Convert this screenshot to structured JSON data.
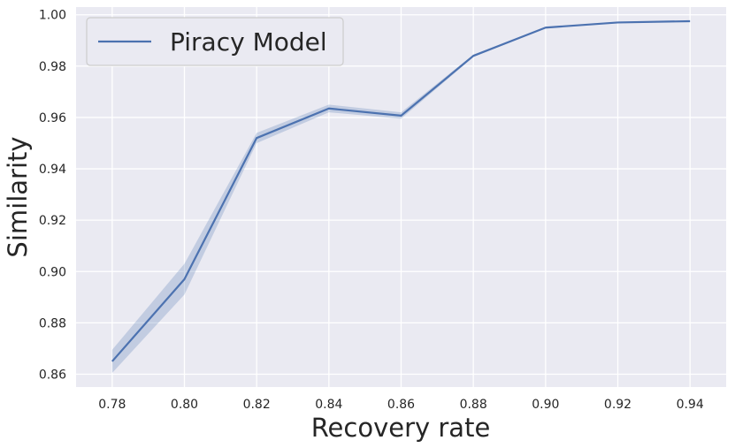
{
  "chart_data": {
    "type": "line",
    "title": "",
    "xlabel": "Recovery rate",
    "ylabel": "Similarity",
    "xlim": [
      0.77,
      0.95
    ],
    "ylim": [
      0.855,
      1.003
    ],
    "x_ticks": [
      0.78,
      0.8,
      0.82,
      0.84,
      0.86,
      0.88,
      0.9,
      0.92,
      0.94
    ],
    "x_tick_labels": [
      "0.78",
      "0.80",
      "0.82",
      "0.84",
      "0.86",
      "0.88",
      "0.90",
      "0.92",
      "0.94"
    ],
    "y_ticks": [
      0.86,
      0.88,
      0.9,
      0.92,
      0.94,
      0.96,
      0.98,
      1.0
    ],
    "y_tick_labels": [
      "0.86",
      "0.88",
      "0.90",
      "0.92",
      "0.94",
      "0.96",
      "0.98",
      "1.00"
    ],
    "grid": true,
    "legend_position": "top-left",
    "background_color": "#eaeaf2",
    "series": [
      {
        "name": "Piracy Model",
        "color": "#4c72b0",
        "x": [
          0.78,
          0.8,
          0.82,
          0.84,
          0.86,
          0.88,
          0.9,
          0.92,
          0.94
        ],
        "y": [
          0.865,
          0.897,
          0.952,
          0.9635,
          0.9607,
          0.984,
          0.995,
          0.997,
          0.9975
        ],
        "ci_lower": [
          0.8605,
          0.891,
          0.95,
          0.962,
          0.9595,
          0.9835,
          0.995,
          0.997,
          0.9975
        ],
        "ci_upper": [
          0.8695,
          0.903,
          0.954,
          0.965,
          0.962,
          0.9845,
          0.995,
          0.997,
          0.9975
        ]
      }
    ]
  }
}
